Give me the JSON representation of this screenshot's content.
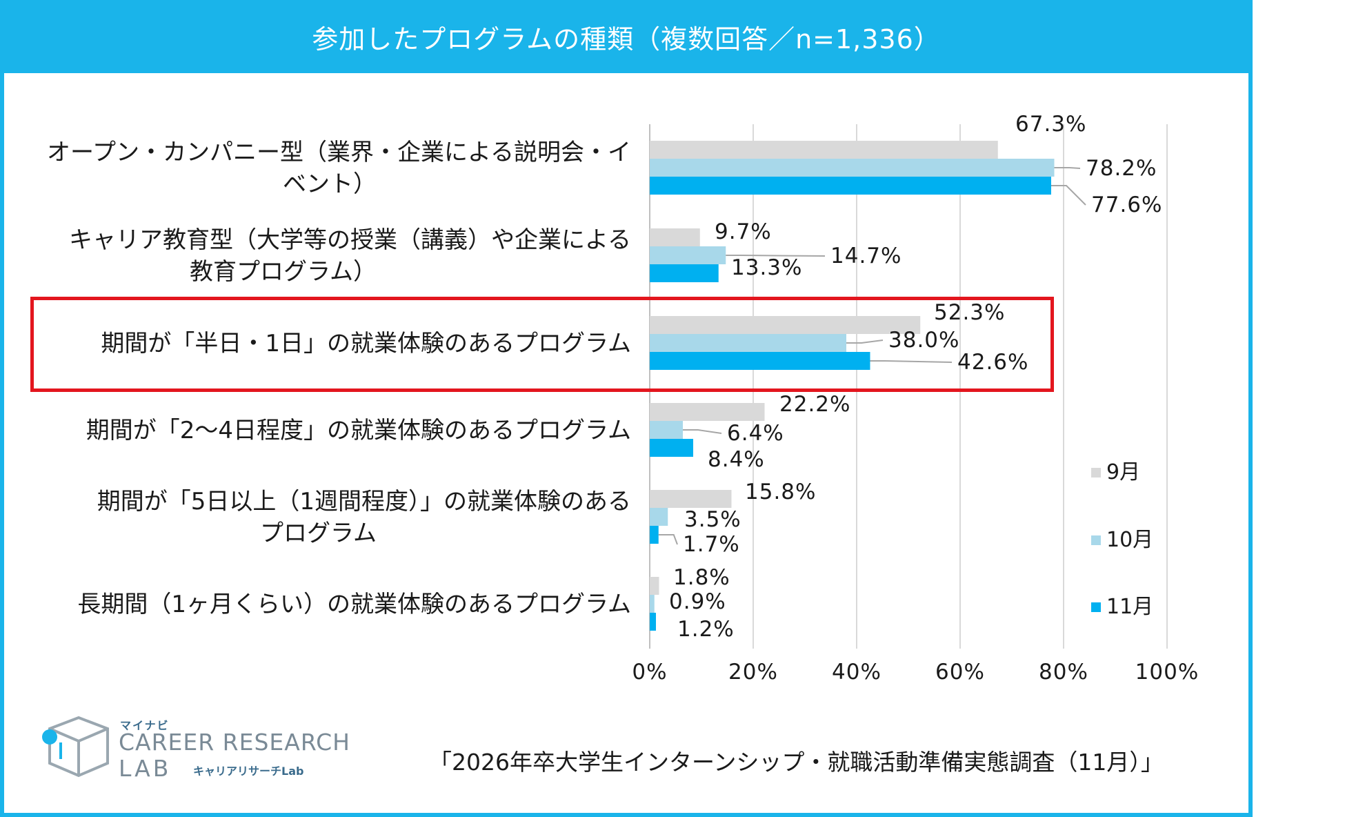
{
  "header": {
    "title": "参加したプログラムの種類（複数回答／n=1,336）"
  },
  "chart_data": {
    "type": "bar",
    "orientation": "horizontal",
    "categories": [
      [
        "オープン・カンパニー型（業界・企業による説明会・イ",
        "ベント）"
      ],
      [
        "キャリア教育型（大学等の授業（講義）や企業による",
        "教育プログラム）"
      ],
      [
        "期間が「半日・1日」の就業体験のあるプログラム"
      ],
      [
        "期間が「2～4日程度」の就業体験のあるプログラム"
      ],
      [
        "期間が「5日以上（1週間程度）」の就業体験のある",
        "プログラム"
      ],
      [
        "長期間（1ヶ月くらい）の就業体験のあるプログラム"
      ]
    ],
    "series": [
      {
        "name": "9月",
        "color": "#d9d9d9",
        "values": [
          67.3,
          9.7,
          52.3,
          22.2,
          15.8,
          1.8
        ],
        "labels": [
          "67.3%",
          "9.7%",
          "52.3%",
          "22.2%",
          "15.8%",
          "1.8%"
        ]
      },
      {
        "name": "10月",
        "color": "#a8d8ea",
        "values": [
          78.2,
          14.7,
          38.0,
          6.4,
          3.5,
          0.9
        ],
        "labels": [
          "78.2%",
          "14.7%",
          "38.0%",
          "6.4%",
          "3.5%",
          "0.9%"
        ]
      },
      {
        "name": "11月",
        "color": "#00b0f0",
        "values": [
          77.6,
          13.3,
          42.6,
          8.4,
          1.7,
          1.2
        ],
        "labels": [
          "77.6%",
          "13.3%",
          "42.6%",
          "8.4%",
          "1.7%",
          "1.2%"
        ]
      }
    ],
    "xlim": [
      0,
      100
    ],
    "xticks": [
      0,
      20,
      40,
      60,
      80,
      100
    ],
    "xtick_labels": [
      "0%",
      "20%",
      "40%",
      "60%",
      "80%",
      "100%"
    ],
    "grid": true,
    "legend_position": "right",
    "highlighted_category_index": 2
  },
  "logo": {
    "brand": "マイナビ",
    "line1": "CAREER RESEARCH",
    "line2": "LAB",
    "sub": "キャリアリサーチLab"
  },
  "footer": {
    "source": "「2026年卒大学生インターンシップ・就職活動準備実態調査（11月）」"
  }
}
